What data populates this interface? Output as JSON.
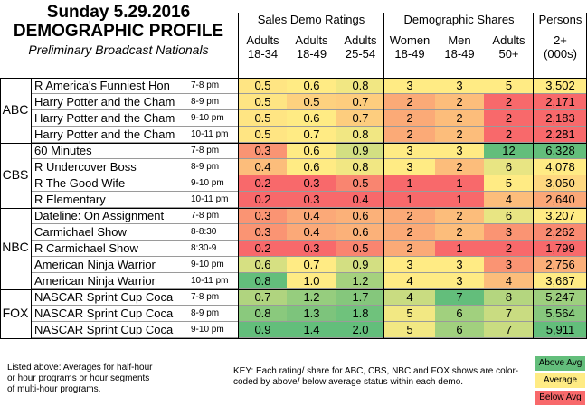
{
  "title": {
    "line1": "Sunday 5.29.2016",
    "line2": "DEMOGRAPHIC PROFILE",
    "line3": "Preliminary Broadcast Nationals"
  },
  "groups": {
    "sales": "Sales Demo Ratings",
    "shares": "Demographic Shares",
    "persons": "Persons"
  },
  "columns": [
    {
      "l1": "Adults",
      "l2": "18-34"
    },
    {
      "l1": "Adults",
      "l2": "18-49"
    },
    {
      "l1": "Adults",
      "l2": "25-54"
    },
    {
      "l1": "Women",
      "l2": "18-49"
    },
    {
      "l1": "Men",
      "l2": "18-49"
    },
    {
      "l1": "Adults",
      "l2": "50+"
    },
    {
      "l1": "2+",
      "l2": "(000s)"
    }
  ],
  "colors": {
    "above": "#63be7b",
    "average": "#ffeb84",
    "below": "#f8696b"
  },
  "networks": [
    "ABC",
    "CBS",
    "NBC",
    "FOX"
  ],
  "rows": [
    {
      "show": "R America's Funniest Hon",
      "slot": "7-8 pm",
      "vals": [
        "0.5",
        "0.6",
        "0.8",
        "3",
        "3",
        "5",
        "3,502"
      ],
      "col": [
        "#ffe583",
        "#ffeb84",
        "#f1e783",
        "#ffeb84",
        "#ffeb84",
        "#ffeb84",
        "#ffeb84"
      ]
    },
    {
      "show": "Harry Potter and the Cham",
      "slot": "8-9 pm",
      "vals": [
        "0.5",
        "0.5",
        "0.7",
        "2",
        "2",
        "2",
        "2,171"
      ],
      "col": [
        "#ffe583",
        "#fdd17f",
        "#fdcd7e",
        "#fbaa77",
        "#fcbd7b",
        "#f8696b",
        "#f8696b"
      ]
    },
    {
      "show": "Harry Potter and the Cham",
      "slot": "9-10 pm",
      "vals": [
        "0.5",
        "0.6",
        "0.7",
        "2",
        "2",
        "2",
        "2,183"
      ],
      "col": [
        "#ffe583",
        "#ffeb84",
        "#fdcd7e",
        "#fbaa77",
        "#fcbd7b",
        "#f8696b",
        "#f8696b"
      ]
    },
    {
      "show": "Harry Potter and the Cham",
      "slot": "10-11 pm",
      "vals": [
        "0.5",
        "0.7",
        "0.8",
        "2",
        "2",
        "2",
        "2,281"
      ],
      "col": [
        "#ffe583",
        "#ffeb84",
        "#f1e783",
        "#fbaa77",
        "#fcbd7b",
        "#f8696b",
        "#f8696b"
      ]
    },
    {
      "show": "60 Minutes",
      "slot": "7-8 pm",
      "vals": [
        "0.3",
        "0.6",
        "0.9",
        "3",
        "3",
        "12",
        "6,328"
      ],
      "col": [
        "#fa9473",
        "#ffeb84",
        "#d3df82",
        "#ffeb84",
        "#ffeb84",
        "#63be7b",
        "#63be7b"
      ]
    },
    {
      "show": "R Undercover Boss",
      "slot": "8-9 pm",
      "vals": [
        "0.4",
        "0.6",
        "0.8",
        "3",
        "2",
        "6",
        "4,078"
      ],
      "col": [
        "#fcbd7b",
        "#ffeb84",
        "#f1e783",
        "#ffeb84",
        "#fcbd7b",
        "#e8e583",
        "#ffeb84"
      ]
    },
    {
      "show": "R The Good Wife",
      "slot": "9-10 pm",
      "vals": [
        "0.2",
        "0.3",
        "0.5",
        "1",
        "1",
        "5",
        "3,050"
      ],
      "col": [
        "#f8696b",
        "#f8696b",
        "#f98570",
        "#f8696b",
        "#f8696b",
        "#ffeb84",
        "#fed880"
      ]
    },
    {
      "show": "R Elementary",
      "slot": "10-11 pm",
      "vals": [
        "0.2",
        "0.3",
        "0.4",
        "1",
        "1",
        "4",
        "2,640"
      ],
      "col": [
        "#f8696b",
        "#f8696b",
        "#f8696b",
        "#f8696b",
        "#f8696b",
        "#fcbd7b",
        "#fba777"
      ]
    },
    {
      "show": "Dateline: On Assignment",
      "slot": "7-8 pm",
      "vals": [
        "0.3",
        "0.4",
        "0.6",
        "2",
        "2",
        "6",
        "3,207"
      ],
      "col": [
        "#fa9473",
        "#fba978",
        "#fbb179",
        "#fbaa77",
        "#fcbd7b",
        "#e8e583",
        "#ffeb84"
      ]
    },
    {
      "show": "Carmichael Show",
      "slot": "8-8:30",
      "vals": [
        "0.3",
        "0.4",
        "0.6",
        "2",
        "2",
        "3",
        "2,262"
      ],
      "col": [
        "#fa9473",
        "#fba978",
        "#fbb179",
        "#fbaa77",
        "#fcbd7b",
        "#fa9473",
        "#f98a71"
      ]
    },
    {
      "show": "R Carmichael Show",
      "slot": "8:30-9",
      "vals": [
        "0.2",
        "0.3",
        "0.5",
        "2",
        "1",
        "2",
        "1,799"
      ],
      "col": [
        "#f8696b",
        "#f8696b",
        "#f98570",
        "#fbaa77",
        "#f8696b",
        "#f8696b",
        "#f8696b"
      ]
    },
    {
      "show": "American Ninja Warrior",
      "slot": "9-10 pm",
      "vals": [
        "0.6",
        "0.7",
        "0.9",
        "3",
        "3",
        "3",
        "2,756"
      ],
      "col": [
        "#d6e082",
        "#ffeb84",
        "#d3df82",
        "#ffeb84",
        "#ffeb84",
        "#fa9473",
        "#fbaf79"
      ]
    },
    {
      "show": "American Ninja Warrior",
      "slot": "10-11 pm",
      "vals": [
        "0.8",
        "1.0",
        "1.2",
        "4",
        "3",
        "4",
        "3,667"
      ],
      "col": [
        "#63be7b",
        "#ffeb84",
        "#a5d17e",
        "#ffeb84",
        "#ffeb84",
        "#fcbd7b",
        "#ffeb84"
      ]
    },
    {
      "show": "NASCAR Sprint Cup Coca",
      "slot": "7-8 pm",
      "vals": [
        "0.7",
        "1.2",
        "1.7",
        "4",
        "7",
        "8",
        "5,247"
      ],
      "col": [
        "#b0d47f",
        "#96cd7e",
        "#85c77c",
        "#c9dc81",
        "#63be7b",
        "#b4d67f",
        "#9dcf7e"
      ]
    },
    {
      "show": "NASCAR Sprint Cup Coca",
      "slot": "8-9 pm",
      "vals": [
        "0.8",
        "1.3",
        "1.8",
        "5",
        "6",
        "7",
        "5,564"
      ],
      "col": [
        "#8ac97d",
        "#7dc47c",
        "#6fc27c",
        "#f2e883",
        "#a1d07e",
        "#c9dc81",
        "#87c87d"
      ]
    },
    {
      "show": "NASCAR Sprint Cup Coca",
      "slot": "9-10 pm",
      "vals": [
        "0.9",
        "1.4",
        "2.0",
        "5",
        "6",
        "7",
        "5,911"
      ],
      "col": [
        "#63be7b",
        "#63be7b",
        "#63be7b",
        "#f2e883",
        "#a1d07e",
        "#c9dc81",
        "#63be7b"
      ]
    }
  ],
  "notes": {
    "left": [
      "Listed above: Averages for half-hour",
      "or hour programs or hour segments",
      "of multi-hour programs."
    ],
    "key": [
      "KEY: Each rating/ share for ABC, CBS, NBC and FOX shows are color-",
      "coded by above/ below average status within each demo."
    ]
  },
  "legend": {
    "above": "Above Avg",
    "average": "Average",
    "below": "Below Avg"
  }
}
